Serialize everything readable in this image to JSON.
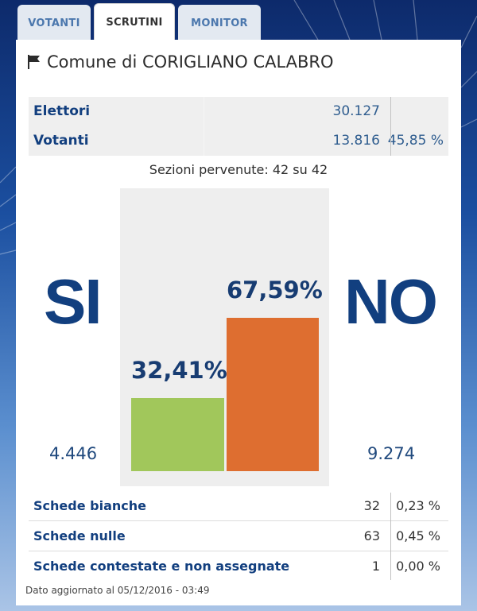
{
  "tabs": [
    {
      "label": "VOTANTI",
      "active": false
    },
    {
      "label": "SCRUTINI",
      "active": true
    },
    {
      "label": "MONITOR",
      "active": false
    }
  ],
  "title": "Comune di CORIGLIANO CALABRO",
  "stats": {
    "elettori": {
      "label": "Elettori",
      "value": "30.127"
    },
    "votanti": {
      "label": "Votanti",
      "value": "13.816",
      "pct": "45,85 %"
    }
  },
  "sezioni": "Sezioni pervenute: 42 su 42",
  "results": {
    "si": {
      "label": "SI",
      "pct_label": "32,41%",
      "pct": 32.41,
      "count": "4.446",
      "color": "#a1c75b"
    },
    "no": {
      "label": "NO",
      "pct_label": "67,59%",
      "pct": 67.59,
      "count": "9.274",
      "color": "#de6e30"
    }
  },
  "schede": [
    {
      "label": "Schede bianche",
      "value": "32",
      "pct": "0,23 %"
    },
    {
      "label": "Schede nulle",
      "value": "63",
      "pct": "0,45 %"
    },
    {
      "label": "Schede contestate e non assegnate",
      "value": "1",
      "pct": "0,00 %"
    }
  ],
  "footer": "Dato aggiornato al 05/12/2016 - 03:49",
  "colors": {
    "brand": "#123f7f",
    "tab_inactive_text": "#4b77ad"
  }
}
